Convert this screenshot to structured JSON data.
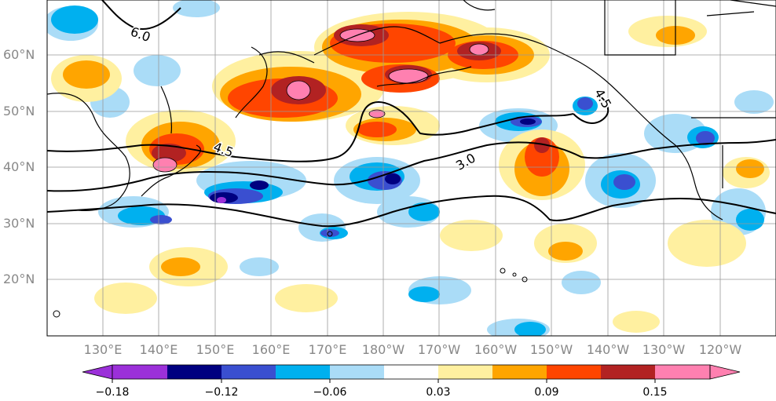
{
  "map": {
    "lat_labels": [
      "60°N",
      "50°N",
      "40°N",
      "30°N",
      "20°N"
    ],
    "lon_labels": [
      "130°E",
      "140°E",
      "150°E",
      "160°E",
      "170°E",
      "180°W",
      "170°W",
      "160°W",
      "150°W",
      "140°W",
      "130°W",
      "120°W"
    ],
    "contour_labels": [
      "6.0",
      "4.5",
      "4.5",
      "3.0"
    ],
    "colorbar": {
      "colors": [
        "#9b30d9",
        "#000080",
        "#3a4fd0",
        "#00b0ef",
        "#aadcf7",
        "#ffffff",
        "#fff0a0",
        "#ffa500",
        "#ff4500",
        "#b22222",
        "#ff80b0"
      ],
      "tick_labels": [
        "−0.18",
        "−0.12",
        "−0.06",
        "0.03",
        "0.09",
        "0.15"
      ]
    }
  }
}
